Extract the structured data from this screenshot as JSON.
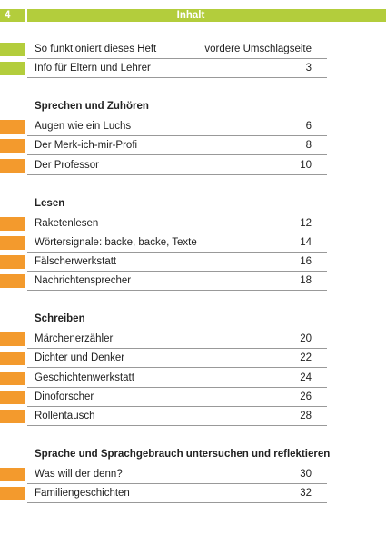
{
  "header": {
    "page": "4",
    "title": "Inhalt"
  },
  "sections": [
    {
      "entries": [
        {
          "title": "So funktioniert dieses Heft",
          "page": "vordere Umschlagseite"
        },
        {
          "title": "Info für Eltern und Lehrer",
          "page": 3
        }
      ]
    },
    {
      "title": "Sprechen und Zuhören",
      "entries": [
        {
          "title": "Augen wie ein Luchs",
          "page": 6
        },
        {
          "title": "Der Merk-ich-mir-Profi",
          "page": 8
        },
        {
          "title": "Der Professor",
          "page": 10
        }
      ]
    },
    {
      "title": "Lesen",
      "entries": [
        {
          "title": "Raketenlesen",
          "page": 12
        },
        {
          "title": "Wörtersignale: backe, backe, Texte",
          "page": 14
        },
        {
          "title": "Fälscherwerkstatt",
          "page": 16
        },
        {
          "title": "Nachrichtensprecher",
          "page": 18
        }
      ]
    },
    {
      "title": "Schreiben",
      "entries": [
        {
          "title": "Märchenerzähler",
          "page": 20
        },
        {
          "title": "Dichter und Denker",
          "page": 22
        },
        {
          "title": "Geschichtenwerkstatt",
          "page": 24
        },
        {
          "title": "Dinoforscher",
          "page": 26
        },
        {
          "title": "Rollentausch",
          "page": 28
        }
      ]
    },
    {
      "title": "Sprache und Sprachgebrauch untersuchen und reflektieren",
      "entries": [
        {
          "title": "Was will der denn?",
          "page": 30
        },
        {
          "title": "Familiengeschichten",
          "page": 32
        }
      ]
    }
  ]
}
